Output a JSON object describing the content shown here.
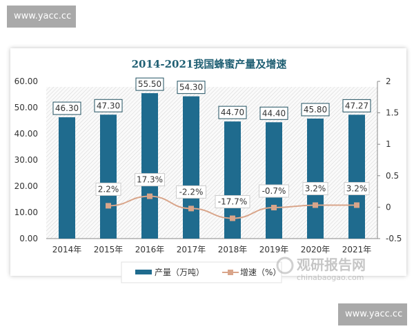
{
  "watermarks": [
    "www.yacc.cc",
    "www.yacc.cc"
  ],
  "logo": {
    "cn": "观研报告网",
    "en": "chinabaogao.com"
  },
  "chart_data": {
    "type": "bar+line",
    "title": "2014-2021我国蜂蜜产量及增速",
    "categories": [
      "2014年",
      "2015年",
      "2016年",
      "2017年",
      "2018年",
      "2019年",
      "2020年",
      "2021年"
    ],
    "series": [
      {
        "name": "产量（万吨）",
        "type": "bar",
        "axis": "left",
        "values": [
          46.3,
          47.3,
          55.5,
          54.3,
          44.7,
          44.4,
          45.8,
          47.27
        ],
        "labels": [
          "46.30",
          "47.30",
          "55.50",
          "54.30",
          "44.70",
          "44.40",
          "45.80",
          "47.27"
        ],
        "color": "#1f6b8e"
      },
      {
        "name": "增速（%）",
        "type": "line",
        "axis": "right",
        "values": [
          null,
          0.022,
          0.173,
          -0.022,
          -0.177,
          -0.007,
          0.032,
          0.032
        ],
        "labels": [
          "",
          "2.2%",
          "17.3%",
          "-2.2%",
          "-17.7%",
          "-0.7%",
          "3.2%",
          "3.2%"
        ],
        "color": "#d9a58a"
      }
    ],
    "y_left": {
      "range": [
        0,
        60
      ],
      "ticks": [
        "0.00",
        "10.00",
        "20.00",
        "30.00",
        "40.00",
        "50.00",
        "60.00"
      ]
    },
    "y_right": {
      "range": [
        -0.5,
        2
      ],
      "ticks": [
        "-0.5",
        "0",
        "0.5",
        "1",
        "1.5",
        "2"
      ]
    },
    "legend": "bottom",
    "grid": false
  }
}
